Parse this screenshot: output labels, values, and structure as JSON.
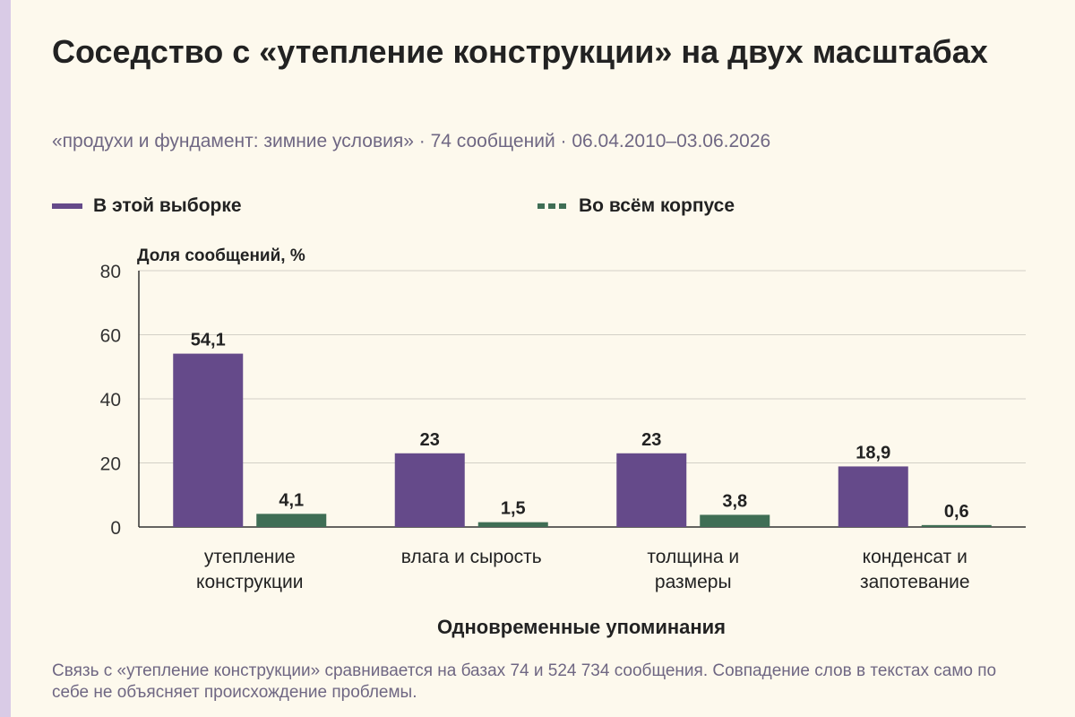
{
  "title": "Соседство с «утепление конструкции» на двух масштабах",
  "subtitle": "«продухи и фундамент: зимние условия» · 74 сообщений · 06.04.2010–03.06.2026",
  "footnote": "Связь с «утепление конструкции» сравнивается на базах 74 и 524 734 сообщения. Совпадение слов в текстах само по себе не объясняет происхождение проблемы.",
  "colors": {
    "series_sample": "#654a8a",
    "series_corpus": "#3f6e55"
  },
  "chart_data": {
    "type": "bar",
    "categories": [
      [
        "утепление",
        "конструкции"
      ],
      [
        "влага и сырость"
      ],
      [
        "толщина и",
        "размеры"
      ],
      [
        "конденсат и",
        "запотевание"
      ]
    ],
    "series": [
      {
        "name": "В этой выборке",
        "values": [
          54.1,
          23,
          23,
          18.9
        ],
        "labels": [
          "54,1",
          "23",
          "23",
          "18,9"
        ]
      },
      {
        "name": "Во всём корпусе",
        "values": [
          4.1,
          1.5,
          3.8,
          0.6
        ],
        "labels": [
          "4,1",
          "1,5",
          "3,8",
          "0,6"
        ]
      }
    ],
    "ylabel": "Доля сообщений, %",
    "xlabel": "Одновременные упоминания",
    "ylim": [
      0,
      80
    ],
    "yticks": [
      0,
      20,
      40,
      60,
      80
    ],
    "grid": true,
    "legend_position": "top"
  }
}
